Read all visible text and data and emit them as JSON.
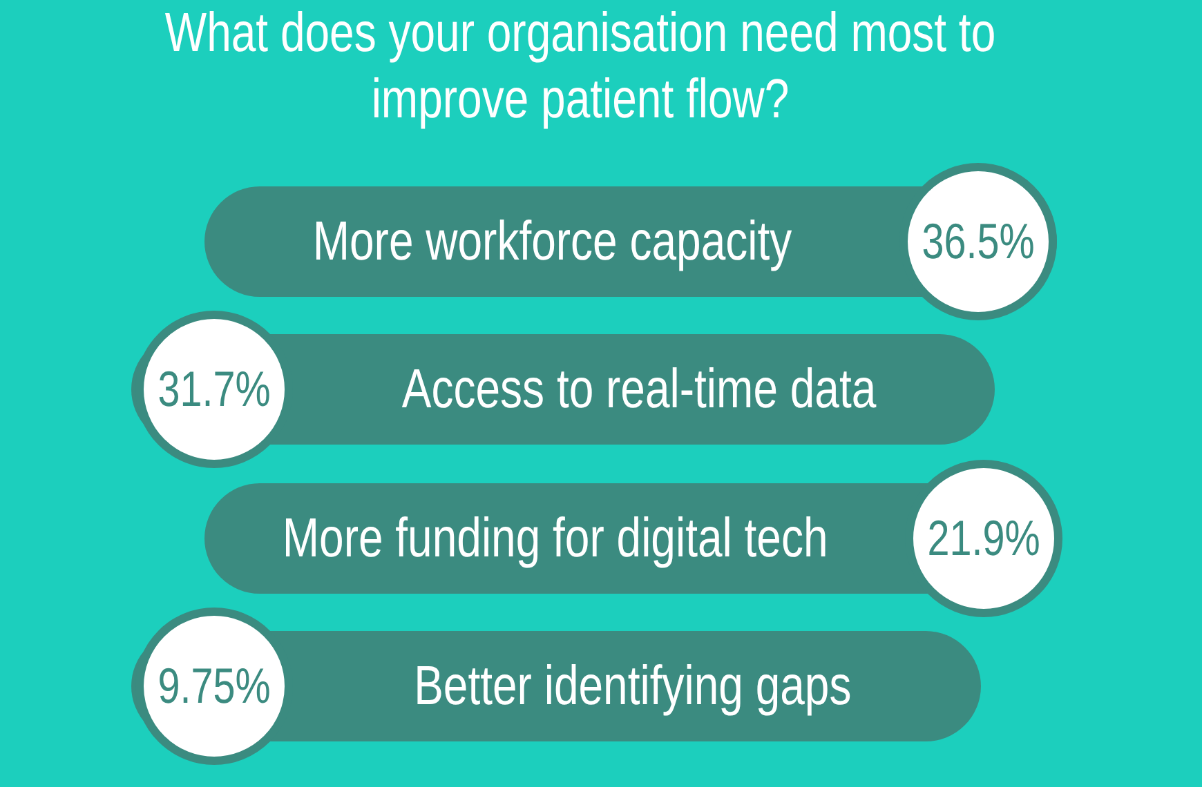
{
  "chart_data": {
    "type": "other",
    "title": "What does your organisation need most to improve patient flow?",
    "categories": [
      "More workforce capacity",
      "Access to real-time data",
      "More funding for digital tech",
      "Better identifying gaps"
    ],
    "values": [
      36.5,
      31.7,
      21.9,
      9.75
    ],
    "value_labels": [
      "36.5%",
      "31.7%",
      "21.9%",
      "9.75%"
    ],
    "colors": [
      "#3b8b80",
      "#3b8b80",
      "#3b8b80",
      "#3b8b80"
    ]
  }
}
